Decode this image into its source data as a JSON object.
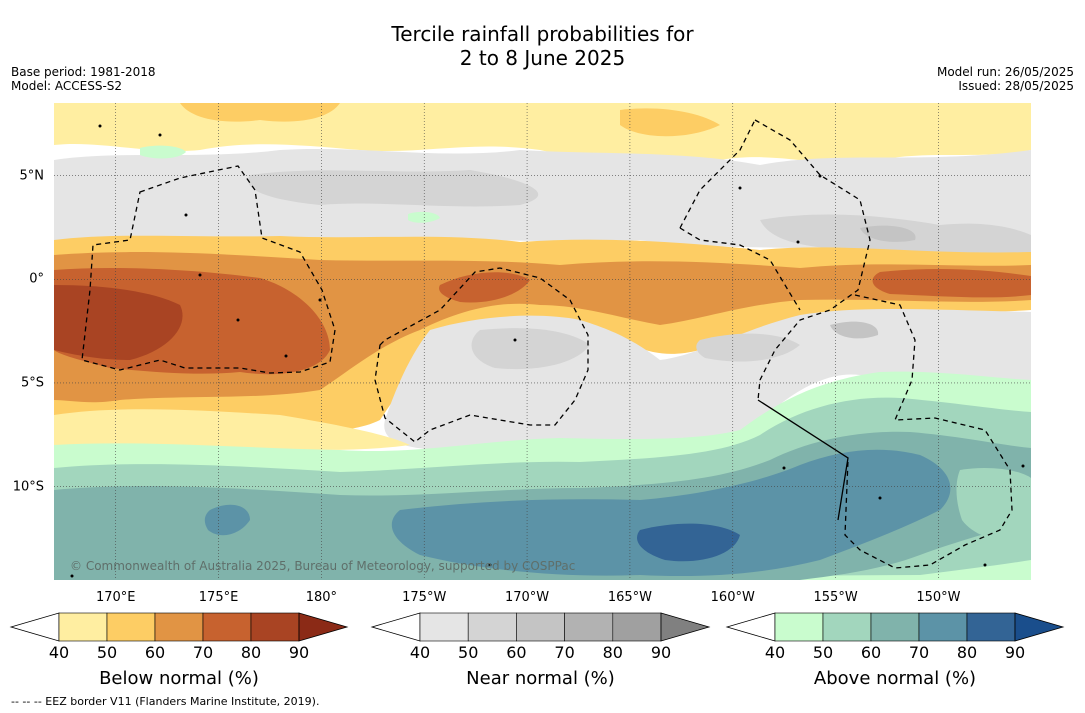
{
  "title": {
    "line1": "Tercile rainfall probabilities for",
    "line2": "2 to 8 June 2025"
  },
  "meta_left": {
    "base_period": "Base period: 1981-2018",
    "model": "Model: ACCESS-S2"
  },
  "meta_right": {
    "model_run": "Model run: 26/05/2025",
    "issued": "Issued: 28/05/2025"
  },
  "map": {
    "lat_labels": [
      "5°N",
      "0°",
      "5°S",
      "10°S"
    ],
    "lon_labels": [
      "170°E",
      "175°E",
      "180°",
      "175°W",
      "170°W",
      "165°W",
      "160°W",
      "155°W",
      "150°W"
    ],
    "copyright": "© Commonwealth of Australia 2025, Bureau of Meteorology, supported by COSPPac",
    "extent": {
      "lon_min": 167,
      "lon_max": 214.5,
      "lat_min": -14.5,
      "lat_max": 8.5
    },
    "grid": {
      "lats": [
        5,
        0,
        -5,
        -10
      ],
      "lons": [
        170,
        175,
        180,
        185,
        190,
        195,
        200,
        205,
        210
      ]
    }
  },
  "colorbars": [
    {
      "name": "below",
      "label": "Below normal (%)",
      "ticks": [
        "40",
        "50",
        "60",
        "70",
        "80",
        "90"
      ],
      "colors": [
        "#ffeea1",
        "#fdcd64",
        "#e19444",
        "#c7622f",
        "#a94423",
        "#8b2a16"
      ]
    },
    {
      "name": "near",
      "label": "Near normal (%)",
      "ticks": [
        "40",
        "50",
        "60",
        "70",
        "80",
        "90"
      ],
      "colors": [
        "#e5e5e5",
        "#d4d4d4",
        "#c4c4c4",
        "#b2b2b2",
        "#a0a0a0",
        "#808080"
      ]
    },
    {
      "name": "above",
      "label": "Above normal (%)",
      "ticks": [
        "40",
        "50",
        "60",
        "70",
        "80",
        "90"
      ],
      "colors": [
        "#c9fcce",
        "#a2d6bd",
        "#80b3ab",
        "#5c93a7",
        "#336495",
        "#1a4e8c"
      ]
    }
  ],
  "footnote": "--  --  -- EEZ border V11 (Flanders Marine Institute, 2019)."
}
